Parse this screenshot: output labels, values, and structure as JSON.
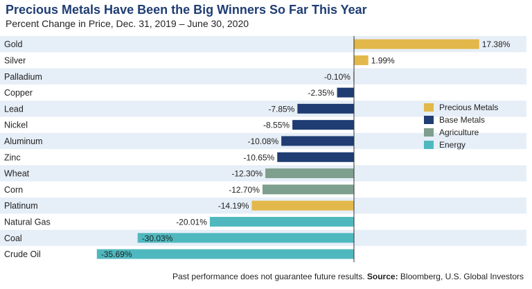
{
  "title": "Precious Metals Have Been the Big Winners So Far This Year",
  "subtitle": "Percent Change in Price, Dec. 31, 2019 – June 30, 2020",
  "footnote": {
    "text": "Past performance does not guarantee future results.",
    "source_label": "Source:",
    "source": "Bloomberg, U.S. Global Investors"
  },
  "chart_data": {
    "type": "bar",
    "orientation": "horizontal",
    "categories": [
      "Gold",
      "Silver",
      "Palladium",
      "Copper",
      "Lead",
      "Nickel",
      "Aluminum",
      "Zinc",
      "Wheat",
      "Corn",
      "Platinum",
      "Natural Gas",
      "Coal",
      "Crude Oil"
    ],
    "values": [
      17.38,
      1.99,
      -0.1,
      -2.35,
      -7.85,
      -8.55,
      -10.08,
      -10.65,
      -12.3,
      -12.7,
      -14.19,
      -20.01,
      -30.03,
      -35.69
    ],
    "value_labels": [
      "17.38%",
      "1.99%",
      "-0.10%",
      "-2.35%",
      "-7.85%",
      "-8.55%",
      "-10.08%",
      "-10.65%",
      "-12.30%",
      "-12.70%",
      "-14.19%",
      "-20.01%",
      "-30.03%",
      "-35.69%"
    ],
    "groups": [
      "Precious Metals",
      "Precious Metals",
      "Precious Metals",
      "Base Metals",
      "Base Metals",
      "Base Metals",
      "Base Metals",
      "Base Metals",
      "Agriculture",
      "Agriculture",
      "Precious Metals",
      "Energy",
      "Energy",
      "Energy"
    ],
    "legend": [
      {
        "name": "Precious Metals",
        "color": "#e3b84a"
      },
      {
        "name": "Base Metals",
        "color": "#1f3d73"
      },
      {
        "name": "Agriculture",
        "color": "#7f9f8e"
      },
      {
        "name": "Energy",
        "color": "#4fb8bf"
      }
    ],
    "legend_position": "right",
    "xlim": [
      -37,
      18
    ],
    "row_shading": "alternating",
    "row_shade_color": "#e6eef7"
  }
}
